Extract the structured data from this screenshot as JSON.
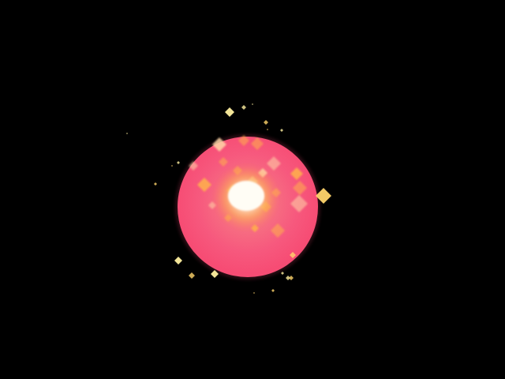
{
  "scene": {
    "background_color": "#000000",
    "orb": {
      "icon": "glowing-energy-orb-icon",
      "color": "#ff5a80",
      "rim_color": "#ff3f6f"
    },
    "core": {
      "icon": "bright-white-core-icon",
      "color": "#fff8e8",
      "glow_color": "#ffc34d"
    },
    "sparkle_color": "#fff0a0",
    "inner_sparkle_color": "#ffd7a8"
  }
}
